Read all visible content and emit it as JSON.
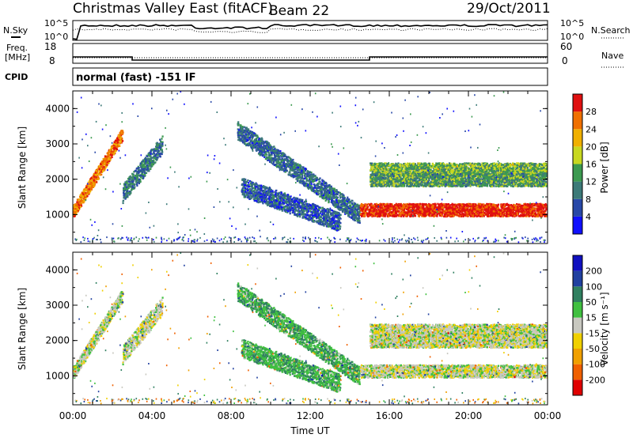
{
  "header": {
    "title": "Christmas Valley East (fitACF)",
    "beam": "Beam 22",
    "date": "29/Oct/2011"
  },
  "noise_panel": {
    "left_label": "N.Sky",
    "left_ticks": [
      "10^5",
      "10^0"
    ],
    "right_label": "N.Search",
    "right_ticks": [
      "10^5",
      "10^0"
    ]
  },
  "freq_panel": {
    "left_label_1": "Freq.",
    "left_label_2": "[MHz]",
    "left_ticks": [
      "18",
      "8"
    ],
    "right_label": "Nave",
    "right_ticks": [
      "60",
      "0"
    ]
  },
  "cpid_panel": {
    "label": "CPID",
    "text": "normal (fast) -151 IF"
  },
  "power_panel": {
    "ylabel": "Slant Range [km]",
    "yticks": [
      "1000",
      "2000",
      "3000",
      "4000"
    ],
    "colorbar_label": "Power [dB]",
    "colorbar_ticks": [
      "4",
      "8",
      "12",
      "16",
      "20",
      "24",
      "28"
    ],
    "colorbar_colors": [
      "#1010ff",
      "#2848a8",
      "#3c7a78",
      "#3c9a50",
      "#c8d820",
      "#f0b000",
      "#f07000",
      "#e01010"
    ]
  },
  "velocity_panel": {
    "ylabel": "Slant Range [km]",
    "yticks": [
      "1000",
      "2000",
      "3000",
      "4000"
    ],
    "colorbar_label": "Velocity [m s⁻¹]",
    "colorbar_ticks": [
      "-200",
      "-100",
      "-50",
      "-15",
      "15",
      "50",
      "100",
      "200"
    ],
    "colorbar_colors": [
      "#e00000",
      "#f06000",
      "#f0a000",
      "#f0d000",
      "#c8c8c0",
      "#40c040",
      "#308060",
      "#2040a0",
      "#1010c0"
    ]
  },
  "xaxis": {
    "ticks": [
      "00:00",
      "04:00",
      "08:00",
      "12:00",
      "16:00",
      "20:00",
      "00:00"
    ],
    "label": "Time UT"
  },
  "chart_data": {
    "type": "heatmap",
    "x_range_hours": [
      0,
      24
    ],
    "y_range_km": [
      180,
      4500
    ],
    "power_scale_db": [
      0,
      30
    ],
    "velocity_scale_ms": [
      -250,
      250
    ],
    "frequency_mhz": {
      "segments": [
        {
          "start_hour": 0,
          "end_hour": 3,
          "value": 12
        },
        {
          "start_hour": 3,
          "end_hour": 15,
          "value": 10
        },
        {
          "start_hour": 15,
          "end_hour": 24,
          "value": 12
        }
      ]
    },
    "scatter_features": [
      {
        "name": "early_band",
        "start_hour": 0.0,
        "end_hour": 2.5,
        "start_km": 1100,
        "end_km": 3300,
        "power_db": 24,
        "velocity": 0
      },
      {
        "name": "morning_patches",
        "start_hour": 2.5,
        "end_hour": 4.5,
        "start_km": 1600,
        "end_km": 3000,
        "power_db": 9,
        "velocity": 0
      },
      {
        "name": "descending_arc",
        "start_hour": 8.3,
        "end_hour": 14.5,
        "start_km": 3400,
        "end_km": 1000,
        "power_db": 8,
        "velocity": 40
      },
      {
        "name": "lower_branch",
        "start_hour": 8.5,
        "end_hour": 13.5,
        "start_km": 1800,
        "end_km": 800,
        "power_db": 7,
        "velocity": 40
      },
      {
        "name": "ground_scatter_band",
        "start_hour": 14.5,
        "end_hour": 24.0,
        "start_km": 1150,
        "end_km": 1150,
        "power_db": 28,
        "velocity": 0
      },
      {
        "name": "upper_band_1",
        "start_hour": 15.0,
        "end_hour": 24.0,
        "start_km": 2300,
        "end_km": 2300,
        "power_db": 14,
        "velocity": 0
      },
      {
        "name": "upper_band_2",
        "start_hour": 15.0,
        "end_hour": 24.0,
        "start_km": 2000,
        "end_km": 2000,
        "power_db": 12,
        "velocity": 0
      }
    ]
  }
}
